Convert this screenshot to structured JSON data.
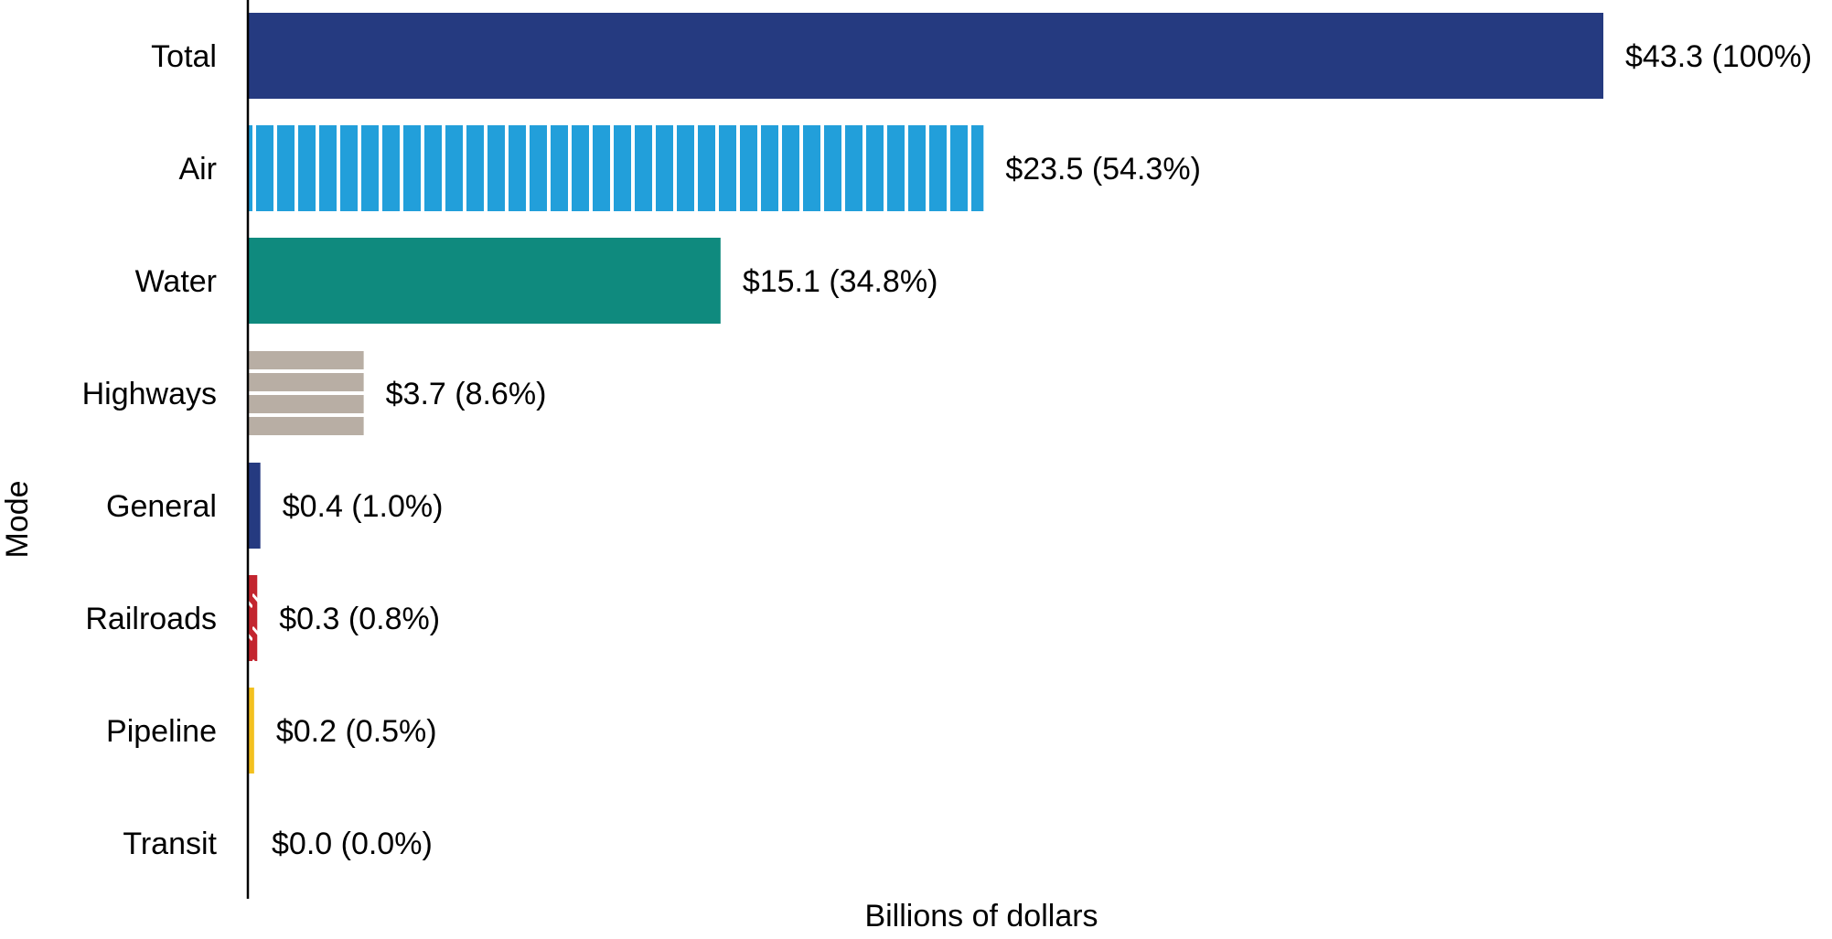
{
  "chart_data": {
    "type": "bar",
    "orientation": "horizontal",
    "title": "",
    "xlabel": "Billions of dollars",
    "ylabel": "Mode",
    "xlim": [
      0,
      43.3
    ],
    "grid": false,
    "legend": "none",
    "categories": [
      "Total",
      "Air",
      "Water",
      "Highways",
      "General",
      "Railroads",
      "Pipeline",
      "Transit"
    ],
    "values": [
      43.3,
      23.5,
      15.1,
      3.7,
      0.4,
      0.3,
      0.2,
      0.0
    ],
    "data_labels": [
      "$43.3 (100%)",
      "$23.5 (54.3%)",
      "$15.1 (34.8%)",
      "$3.7 (8.6%)",
      "$0.4 (1.0%)",
      "$0.3 (0.8%)",
      "$0.2 (0.5%)",
      "$0.0 (0.0%)"
    ],
    "bar_colors": [
      "#253a80",
      "#229fda",
      "#0f8a7e",
      "#b8aea4",
      "#253a80",
      "#c3252f",
      "#f3c11f",
      "#253a80"
    ],
    "bar_patterns": [
      "solid",
      "vertical-stripes",
      "solid",
      "horizontal-stripes",
      "solid",
      "diagonal-hatch",
      "solid",
      "solid"
    ]
  }
}
